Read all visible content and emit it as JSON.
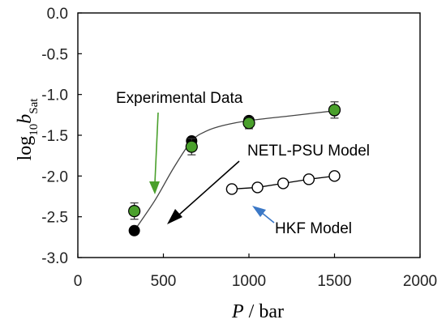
{
  "chart_data": {
    "type": "scatter",
    "title": "",
    "xlabel": {
      "italic": "P",
      "rest": " / bar"
    },
    "ylabel": {
      "main": "log",
      "sub1": "10",
      "ital": "b",
      "sub2": "Sat"
    },
    "xlim": [
      0,
      2000
    ],
    "ylim": [
      -3.0,
      0.0
    ],
    "x_ticks": [
      0,
      500,
      1000,
      1500,
      2000
    ],
    "x_tick_labels": [
      "0",
      "500",
      "1000",
      "1500",
      "2000"
    ],
    "y_ticks": [
      0.0,
      -0.5,
      -1.0,
      -1.5,
      -2.0,
      -2.5,
      -3.0
    ],
    "y_tick_labels": [
      "0.0",
      "-0.5",
      "-1.0",
      "-1.5",
      "-2.0",
      "-2.5",
      "-3.0"
    ],
    "grid": false,
    "series": [
      {
        "name": "Experimental Data",
        "marker": "circle-green",
        "color": "#4aa02c",
        "points": [
          {
            "x": 330,
            "y": -2.43,
            "err": 0.1
          },
          {
            "x": 665,
            "y": -1.64,
            "err": 0.1
          },
          {
            "x": 1000,
            "y": -1.35,
            "err": 0.07
          },
          {
            "x": 1500,
            "y": -1.19,
            "err": 0.1
          }
        ]
      },
      {
        "name": "NETL-PSU Model",
        "marker": "circle-black",
        "color": "#000000",
        "points": [
          {
            "x": 330,
            "y": -2.67
          },
          {
            "x": 665,
            "y": -1.57
          },
          {
            "x": 1000,
            "y": -1.32
          },
          {
            "x": 1500,
            "y": -1.2
          }
        ],
        "curve": [
          [
            330,
            -2.67
          ],
          [
            450,
            -2.3
          ],
          [
            560,
            -1.9
          ],
          [
            665,
            -1.57
          ],
          [
            750,
            -1.45
          ],
          [
            850,
            -1.38
          ],
          [
            1000,
            -1.32
          ],
          [
            1250,
            -1.26
          ],
          [
            1500,
            -1.2
          ]
        ]
      },
      {
        "name": "HKF Model",
        "marker": "circle-open",
        "color": "#000000",
        "points": [
          {
            "x": 900,
            "y": -2.16
          },
          {
            "x": 1050,
            "y": -2.14
          },
          {
            "x": 1200,
            "y": -2.09
          },
          {
            "x": 1350,
            "y": -2.04
          },
          {
            "x": 1500,
            "y": -2.0
          }
        ]
      }
    ],
    "annotations": [
      {
        "text": "Experimental Data",
        "color": "#4aa02c"
      },
      {
        "text": "NETL-PSU Model",
        "color": "#000000"
      },
      {
        "text": "HKF Model",
        "color": "#3b78c6"
      }
    ]
  }
}
